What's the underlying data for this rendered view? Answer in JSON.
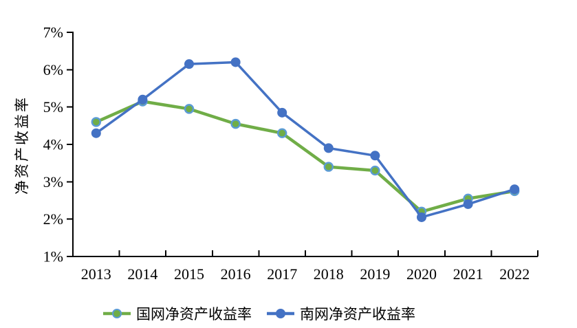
{
  "chart_data": {
    "type": "line",
    "title": "",
    "xlabel": "",
    "ylabel": "净资产收益率",
    "categories": [
      "2013",
      "2014",
      "2015",
      "2016",
      "2017",
      "2018",
      "2019",
      "2020",
      "2021",
      "2022"
    ],
    "series": [
      {
        "name": "国网净资产收益率",
        "values": [
          4.6,
          5.15,
          4.95,
          4.55,
          4.3,
          3.4,
          3.3,
          2.2,
          2.55,
          2.75
        ],
        "color": "#70AD47",
        "marker_fill": "#70AD47",
        "marker_edge": "#5B9BD5",
        "line_width": 4.5
      },
      {
        "name": "南网净资产收益率",
        "values": [
          4.3,
          5.2,
          6.15,
          6.2,
          4.85,
          3.9,
          3.7,
          2.05,
          2.4,
          2.8
        ],
        "color": "#4472C4",
        "marker_fill": "#4472C4",
        "marker_edge": "#4472C4",
        "line_width": 3.5
      }
    ],
    "ylim": [
      1,
      7
    ],
    "y_ticks": [
      "1%",
      "2%",
      "3%",
      "4%",
      "5%",
      "6%",
      "7%"
    ],
    "grid": false,
    "legend_position": "bottom",
    "axis_color": "#000000"
  }
}
